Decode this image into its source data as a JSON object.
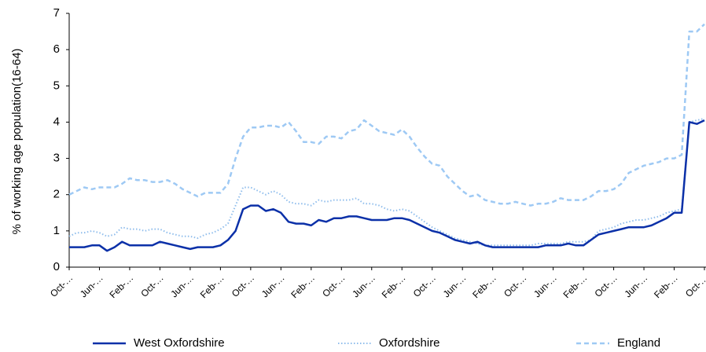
{
  "chart_data": {
    "type": "line",
    "y_label": "% of working age population(16-64)",
    "categories": [
      "Oct-…",
      null,
      null,
      null,
      "Jun-…",
      null,
      null,
      null,
      "Feb-…",
      null,
      null,
      null,
      "Oct-…",
      null,
      null,
      null,
      "Jun-…",
      null,
      null,
      null,
      "Feb-…",
      null,
      null,
      null,
      "Oct-…",
      null,
      null,
      null,
      "Jun-…",
      null,
      null,
      null,
      "Feb-…",
      null,
      null,
      null,
      "Oct-…",
      null,
      null,
      null,
      "Jun-…",
      null,
      null,
      null,
      "Feb-…",
      null,
      null,
      null,
      "Oct-…",
      null,
      null,
      null,
      "Jun-…",
      null,
      null,
      null,
      "Feb-…",
      null,
      null,
      null,
      "Oct-…",
      null,
      null,
      null,
      "Jun-…",
      null,
      null,
      null,
      "Feb-…",
      null,
      null,
      null,
      "Oct-…",
      null,
      null,
      null,
      "Jun-…",
      null,
      null,
      null,
      "Feb-…",
      null,
      null,
      null,
      "Oct-…"
    ],
    "series": [
      {
        "name": "West Oxfordshire",
        "color": "#0b30a8",
        "line_style": "solid",
        "values": [
          0.55,
          0.55,
          0.55,
          0.6,
          0.6,
          0.45,
          0.55,
          0.7,
          0.6,
          0.6,
          0.6,
          0.6,
          0.7,
          0.65,
          0.6,
          0.55,
          0.5,
          0.55,
          0.55,
          0.55,
          0.6,
          0.75,
          1.0,
          1.6,
          1.7,
          1.7,
          1.55,
          1.6,
          1.5,
          1.25,
          1.2,
          1.2,
          1.15,
          1.3,
          1.25,
          1.35,
          1.35,
          1.4,
          1.4,
          1.35,
          1.3,
          1.3,
          1.3,
          1.35,
          1.35,
          1.3,
          1.2,
          1.1,
          1.0,
          0.95,
          0.85,
          0.75,
          0.7,
          0.65,
          0.7,
          0.6,
          0.55,
          0.55,
          0.55,
          0.55,
          0.55,
          0.55,
          0.55,
          0.6,
          0.6,
          0.6,
          0.65,
          0.6,
          0.6,
          0.75,
          0.9,
          0.95,
          1.0,
          1.05,
          1.1,
          1.1,
          1.1,
          1.15,
          1.25,
          1.35,
          1.5,
          1.5,
          4.0,
          3.95,
          4.05
        ]
      },
      {
        "name": "Oxfordshire",
        "color": "#8fbdec",
        "line_style": "dotted",
        "values": [
          0.85,
          0.95,
          0.95,
          1.0,
          0.95,
          0.85,
          0.9,
          1.1,
          1.05,
          1.05,
          1.0,
          1.05,
          1.05,
          0.95,
          0.9,
          0.85,
          0.85,
          0.8,
          0.9,
          0.95,
          1.05,
          1.2,
          1.7,
          2.2,
          2.2,
          2.1,
          2.0,
          2.1,
          2.0,
          1.8,
          1.75,
          1.75,
          1.7,
          1.85,
          1.8,
          1.85,
          1.85,
          1.85,
          1.9,
          1.75,
          1.75,
          1.7,
          1.6,
          1.55,
          1.6,
          1.55,
          1.4,
          1.25,
          1.1,
          1.0,
          0.9,
          0.8,
          0.75,
          0.7,
          0.65,
          0.6,
          0.6,
          0.6,
          0.6,
          0.6,
          0.6,
          0.6,
          0.65,
          0.65,
          0.65,
          0.65,
          0.7,
          0.7,
          0.7,
          0.75,
          1.0,
          1.05,
          1.1,
          1.2,
          1.25,
          1.3,
          1.3,
          1.35,
          1.4,
          1.5,
          1.55,
          1.6,
          4.0,
          4.05,
          4.1
        ]
      },
      {
        "name": "England",
        "color": "#9ec9f4",
        "line_style": "dashed",
        "values": [
          2.0,
          2.1,
          2.2,
          2.15,
          2.2,
          2.2,
          2.2,
          2.3,
          2.45,
          2.4,
          2.4,
          2.35,
          2.35,
          2.4,
          2.3,
          2.15,
          2.05,
          1.95,
          2.05,
          2.05,
          2.05,
          2.3,
          3.0,
          3.6,
          3.85,
          3.85,
          3.9,
          3.9,
          3.85,
          4.0,
          3.75,
          3.45,
          3.45,
          3.4,
          3.6,
          3.6,
          3.55,
          3.75,
          3.8,
          4.05,
          3.9,
          3.75,
          3.7,
          3.65,
          3.8,
          3.6,
          3.3,
          3.05,
          2.85,
          2.8,
          2.5,
          2.3,
          2.1,
          1.95,
          2.0,
          1.85,
          1.8,
          1.75,
          1.75,
          1.8,
          1.75,
          1.7,
          1.75,
          1.75,
          1.8,
          1.9,
          1.85,
          1.85,
          1.85,
          1.95,
          2.1,
          2.1,
          2.15,
          2.3,
          2.6,
          2.7,
          2.8,
          2.85,
          2.9,
          3.0,
          3.0,
          3.1,
          6.5,
          6.5,
          6.7
        ]
      }
    ],
    "ylim": [
      0,
      7
    ],
    "yticks": [
      0,
      1,
      2,
      3,
      4,
      5,
      6,
      7
    ],
    "grid": false,
    "legend": "bottom"
  }
}
